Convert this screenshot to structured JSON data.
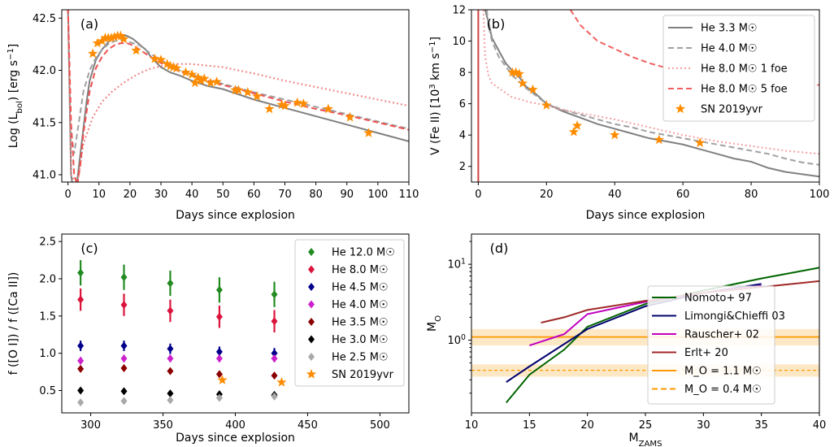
{
  "chart_data": [
    {
      "panel": "(a)",
      "type": "line",
      "xlabel": "Days since explosion",
      "ylabel": "Log (L_bol) [erg s^-1]",
      "xlim": [
        -2,
        110
      ],
      "ylim": [
        40.93,
        42.58
      ],
      "xticks": [
        0,
        10,
        20,
        30,
        40,
        50,
        60,
        70,
        80,
        90,
        100,
        110
      ],
      "yticks": [
        41.0,
        41.5,
        42.0,
        42.5
      ],
      "grid": false,
      "series": [
        {
          "name": "He 3.3 M☉",
          "style": "solid",
          "color": "#808080",
          "x": [
            0,
            0.5,
            1,
            2,
            3,
            4,
            5,
            6,
            7,
            9,
            11,
            13,
            15,
            17,
            19,
            21,
            23,
            25,
            27,
            30,
            33,
            36,
            40,
            45,
            50,
            60,
            70,
            80,
            90,
            100,
            110
          ],
          "y": [
            42.6,
            41.8,
            41.0,
            40.8,
            40.95,
            41.2,
            41.45,
            41.7,
            41.9,
            42.1,
            42.2,
            42.27,
            42.32,
            42.34,
            42.33,
            42.3,
            42.25,
            42.2,
            42.12,
            42.03,
            41.98,
            41.95,
            41.9,
            41.85,
            41.82,
            41.72,
            41.64,
            41.56,
            41.48,
            41.4,
            41.32
          ]
        },
        {
          "name": "He 4.0 M☉",
          "style": "dashed",
          "color": "#a0a0a0",
          "x": [
            0,
            1,
            2,
            3,
            4,
            5,
            7,
            9,
            11,
            13,
            15,
            17,
            19,
            21,
            23,
            25,
            27,
            30,
            33,
            36,
            40,
            45,
            50,
            60,
            70,
            80,
            90,
            100,
            110
          ],
          "y": [
            42.6,
            41.4,
            41.2,
            41.4,
            41.6,
            41.8,
            42.0,
            42.12,
            42.2,
            42.25,
            42.28,
            42.29,
            42.28,
            42.26,
            42.24,
            42.2,
            42.15,
            42.1,
            42.05,
            42.0,
            41.96,
            41.91,
            41.87,
            41.79,
            41.72,
            41.65,
            41.58,
            41.51,
            41.44
          ]
        },
        {
          "name": "He 8.0 M☉ 1 foe",
          "style": "dotted",
          "color": "#f08080",
          "x": [
            0,
            1,
            3,
            5,
            8,
            11,
            14,
            17,
            20,
            23,
            26,
            30,
            35,
            40,
            50,
            60,
            70,
            80,
            90,
            100,
            110
          ],
          "y": [
            42.6,
            41.0,
            40.9,
            41.3,
            41.55,
            41.7,
            41.79,
            41.86,
            41.92,
            41.97,
            42.01,
            42.04,
            42.06,
            42.06,
            42.03,
            41.97,
            41.9,
            41.84,
            41.78,
            41.72,
            41.66
          ]
        },
        {
          "name": "He 8.0 M☉ 5 foe",
          "style": "dashed",
          "color": "#f05050",
          "x": [
            0,
            1,
            2,
            3,
            4,
            5,
            7,
            9,
            11,
            13,
            15,
            17,
            19,
            21,
            23,
            25,
            27,
            30,
            33,
            36,
            40,
            45,
            50,
            60,
            70,
            80,
            90,
            100,
            110
          ],
          "y": [
            42.6,
            41.5,
            41.0,
            40.9,
            41.1,
            41.4,
            41.8,
            42.02,
            42.13,
            42.2,
            42.24,
            42.26,
            42.26,
            42.24,
            42.2,
            42.16,
            42.12,
            42.07,
            42.03,
            41.99,
            41.95,
            41.9,
            41.86,
            41.78,
            41.7,
            41.63,
            41.57,
            41.5,
            41.43
          ]
        },
        {
          "name": "SN 2019yvr",
          "style": "markers",
          "color": "#ff8c00",
          "x": [
            8,
            9.5,
            11,
            12,
            13,
            14,
            15,
            16,
            17,
            18,
            22,
            28,
            30,
            32,
            33,
            34,
            35,
            38,
            40,
            41,
            42,
            43,
            44,
            46,
            48,
            54,
            55,
            58,
            61,
            65,
            69,
            70,
            74,
            76,
            84,
            91,
            97
          ],
          "y": [
            42.16,
            42.26,
            42.28,
            42.31,
            42.31,
            42.31,
            42.32,
            42.33,
            42.33,
            42.3,
            42.19,
            42.11,
            42.1,
            42.06,
            42.04,
            42.03,
            42.02,
            41.98,
            41.96,
            41.88,
            41.93,
            41.9,
            41.92,
            41.88,
            41.89,
            41.81,
            41.81,
            41.79,
            41.75,
            41.63,
            41.67,
            41.66,
            41.69,
            41.68,
            41.63,
            41.55,
            41.4
          ]
        }
      ]
    },
    {
      "panel": "(b)",
      "type": "line",
      "xlabel": "Days since explosion",
      "ylabel": "V (Fe II) [10^3 km s^-1]",
      "xlim": [
        -2,
        100
      ],
      "ylim": [
        1.0,
        12.0
      ],
      "xticks": [
        0,
        20,
        40,
        60,
        80,
        100
      ],
      "yticks": [
        2,
        4,
        6,
        8,
        10,
        12
      ],
      "grid": false,
      "legend": "top-right",
      "series": [
        {
          "name": "He 3.3 M☉",
          "style": "solid",
          "color": "#808080",
          "x": [
            2,
            3,
            4,
            5,
            6,
            8,
            10,
            12,
            14,
            17,
            20,
            25,
            30,
            35,
            40,
            45,
            50,
            55,
            60,
            65,
            70,
            75,
            80,
            85,
            90,
            95,
            100
          ],
          "y": [
            12.0,
            11.2,
            10.2,
            9.8,
            9.4,
            8.6,
            8.1,
            7.7,
            7.1,
            6.6,
            6.0,
            5.5,
            5.1,
            4.7,
            4.4,
            4.1,
            3.8,
            3.6,
            3.4,
            3.1,
            2.8,
            2.5,
            2.3,
            1.9,
            1.65,
            1.5,
            1.35
          ]
        },
        {
          "name": "He 4.0 M☉",
          "style": "dashed",
          "color": "#a0a0a0",
          "x": [
            2.5,
            3,
            4,
            5,
            6,
            8,
            10,
            12,
            14,
            17,
            20,
            25,
            30,
            35,
            40,
            45,
            50,
            55,
            60,
            65,
            70,
            75,
            80,
            85,
            90,
            95,
            100
          ],
          "y": [
            12.0,
            11.0,
            10.0,
            9.5,
            9.0,
            8.4,
            7.8,
            7.4,
            7.0,
            6.5,
            6.0,
            5.6,
            5.3,
            5.0,
            4.7,
            4.5,
            4.2,
            4.0,
            3.8,
            3.6,
            3.4,
            3.2,
            3.0,
            2.8,
            2.5,
            2.25,
            2.1
          ]
        },
        {
          "name": "He 8.0 M☉ 1 foe",
          "style": "dotted",
          "color": "#f4a0a0",
          "x": [
            1.5,
            2,
            3,
            4,
            6,
            8,
            10,
            12,
            15,
            20,
            25,
            30,
            40,
            50,
            60,
            70,
            80,
            90,
            100
          ],
          "y": [
            12.0,
            9.0,
            7.8,
            7.3,
            7.0,
            6.7,
            6.4,
            6.3,
            6.1,
            5.9,
            5.6,
            5.4,
            5.0,
            4.5,
            4.0,
            3.6,
            3.3,
            3.0,
            2.8
          ]
        },
        {
          "name": "He 8.0 M☉ 5 foe",
          "style": "dashed",
          "color": "#f06060",
          "x": [
            27,
            30,
            35,
            40,
            45,
            50,
            55,
            60,
            65,
            70,
            75,
            80,
            85,
            90,
            95,
            100
          ],
          "y": [
            12.0,
            11.0,
            10.0,
            9.5,
            9.0,
            8.6,
            8.3,
            8.0,
            7.8,
            7.6,
            7.4,
            7.3,
            7.25,
            7.2,
            7.2,
            7.2
          ]
        },
        {
          "name": "SN 2019yvr",
          "style": "markers",
          "color": "#ff8c00",
          "x": [
            10,
            11,
            12,
            13,
            16,
            20,
            28,
            29,
            40,
            53,
            65
          ],
          "y": [
            8.0,
            8.0,
            7.9,
            7.3,
            6.9,
            5.9,
            4.2,
            4.6,
            4.0,
            3.7,
            3.5
          ]
        }
      ]
    },
    {
      "panel": "(c)",
      "type": "scatter",
      "xlabel": "Days since explosion",
      "ylabel": "f ([O I]) / f ([Ca II])",
      "xlim": [
        280,
        520
      ],
      "ylim": [
        0.2,
        2.6
      ],
      "xticks": [
        300,
        350,
        400,
        450,
        500
      ],
      "yticks": [
        0.5,
        1.0,
        1.5,
        2.0,
        2.5
      ],
      "grid": false,
      "legend": "top-right",
      "x": [
        293,
        323,
        355,
        389,
        427
      ],
      "series": [
        {
          "name": "He 12.0 M☉",
          "color": "#228b22",
          "marker": "diamond",
          "values": [
            2.08,
            2.02,
            1.94,
            1.85,
            1.79
          ],
          "err": [
            0.17,
            0.17,
            0.17,
            0.17,
            0.17
          ]
        },
        {
          "name": "He 8.0 M☉",
          "color": "#dc143c",
          "marker": "diamond",
          "values": [
            1.72,
            1.65,
            1.57,
            1.49,
            1.43
          ],
          "err": [
            0.15,
            0.15,
            0.15,
            0.15,
            0.15
          ]
        },
        {
          "name": "He 4.5 M☉",
          "color": "#00008b",
          "marker": "diamond",
          "values": [
            1.1,
            1.1,
            1.06,
            1.02,
            1.0
          ],
          "err": [
            0.07,
            0.07,
            0.07,
            0.07,
            0.07
          ]
        },
        {
          "name": "He 4.0 M☉",
          "color": "#cc22cc",
          "marker": "diamond",
          "values": [
            0.9,
            0.93,
            0.93,
            0.93,
            0.93
          ],
          "err": [
            0.05,
            0.05,
            0.05,
            0.05,
            0.05
          ]
        },
        {
          "name": "He 3.5 M☉",
          "color": "#8b0000",
          "marker": "diamond",
          "values": [
            0.79,
            0.8,
            0.76,
            0.72,
            0.7
          ],
          "err": [
            0.04,
            0.04,
            0.04,
            0.04,
            0.04
          ]
        },
        {
          "name": "He 3.0 M☉",
          "color": "#000000",
          "marker": "diamond",
          "values": [
            0.5,
            0.49,
            0.46,
            0.45,
            0.44
          ],
          "err": [
            0.03,
            0.03,
            0.03,
            0.03,
            0.03
          ]
        },
        {
          "name": "He 2.5 M☉",
          "color": "#a9a9a9",
          "marker": "diamond",
          "values": [
            0.34,
            0.36,
            0.37,
            0.4,
            0.42
          ],
          "err": [
            0.03,
            0.03,
            0.03,
            0.03,
            0.03
          ]
        },
        {
          "name": "SN 2019yvr",
          "color": "#ff8c00",
          "marker": "star",
          "x": [
            391,
            432
          ],
          "values": [
            0.64,
            0.61
          ]
        }
      ]
    },
    {
      "panel": "(d)",
      "type": "line",
      "xlabel": "M_ZAMS",
      "ylabel": "M_O",
      "xlim": [
        10,
        40
      ],
      "ylim": [
        0.11,
        25
      ],
      "yscale": "log",
      "xticks": [
        10,
        15,
        20,
        25,
        30,
        35,
        40
      ],
      "yticks": [
        1,
        10
      ],
      "grid": false,
      "legend": "center-right",
      "series": [
        {
          "name": "Nomoto+ 97",
          "style": "solid",
          "color": "#006400",
          "x": [
            13,
            15,
            18,
            20,
            25,
            30,
            35,
            40
          ],
          "y": [
            0.15,
            0.35,
            0.75,
            1.5,
            3.0,
            4.5,
            6.5,
            9.0
          ]
        },
        {
          "name": "Limongi&Chieffi 03",
          "style": "solid",
          "color": "#00006e",
          "x": [
            13,
            15,
            20,
            25,
            30,
            35
          ],
          "y": [
            0.28,
            0.45,
            1.4,
            2.8,
            4.2,
            5.5
          ]
        },
        {
          "name": "Rauscher+ 02",
          "style": "solid",
          "color": "#c000c0",
          "x": [
            15,
            18,
            20,
            25,
            30,
            35
          ],
          "y": [
            0.85,
            1.2,
            2.2,
            3.2,
            4.2,
            5.2
          ]
        },
        {
          "name": "Erlt+ 20",
          "style": "solid",
          "color": "#a02828",
          "x": [
            16,
            18,
            20,
            25,
            30,
            35,
            40
          ],
          "y": [
            1.7,
            2.0,
            2.5,
            3.3,
            4.2,
            5.0,
            6.0
          ]
        },
        {
          "name": "M_O = 1.1 M☉",
          "style": "solid",
          "color": "#ff9900",
          "band": [
            0.85,
            1.4
          ],
          "value": 1.1
        },
        {
          "name": "M_O = 0.4 M☉",
          "style": "dashed",
          "color": "#ff9900",
          "band": [
            0.33,
            0.48
          ],
          "value": 0.4
        }
      ]
    }
  ]
}
